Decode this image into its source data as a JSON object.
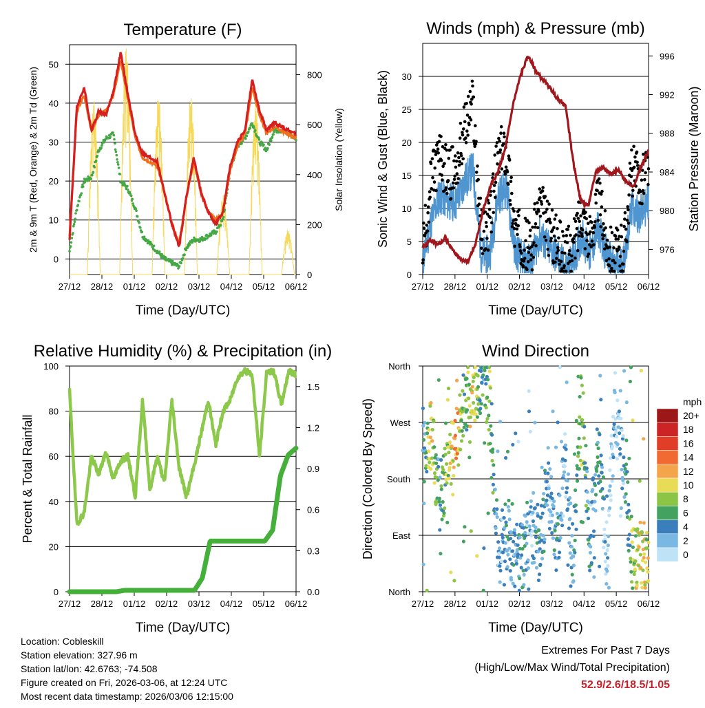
{
  "x_ticks": [
    "27/12",
    "28/12",
    "01/12",
    "02/12",
    "03/12",
    "04/12",
    "05/12",
    "06/12"
  ],
  "colors": {
    "red": "#d62020",
    "orange": "#f07020",
    "green": "#44a844",
    "yellow": "#f6d85a",
    "black": "#000000",
    "blue": "#4f95d0",
    "maroon": "#a0181e",
    "rh": "#8cc84a",
    "rain": "#44b03a",
    "extremes": "#c8202a"
  },
  "chart_data": [
    {
      "id": "temperature",
      "type": "line",
      "title": "Temperature (F)",
      "xlabel": "Time (Day/UTC)",
      "ylabel": "2m & 9m T (Red, Orange) & 2m Td (Green)",
      "y2label": "Solar Insolation (Yellow)",
      "ylim": [
        -4,
        55
      ],
      "yticks": [
        0,
        10,
        20,
        30,
        40,
        50
      ],
      "y2lim": [
        0,
        920
      ],
      "y2ticks": [
        0,
        200,
        400,
        600,
        800
      ],
      "series": [
        {
          "name": "2m T",
          "color": "red",
          "values": [
            5,
            39,
            44,
            33,
            38,
            37,
            43,
            53,
            42,
            32,
            27,
            26,
            25,
            17,
            9,
            3,
            16,
            26,
            17,
            12,
            9,
            12,
            24,
            30,
            33,
            46,
            38,
            33,
            35,
            34,
            33,
            32
          ]
        },
        {
          "name": "9m T",
          "color": "orange",
          "values": [
            6,
            38,
            42,
            33,
            37,
            38,
            42,
            51,
            41,
            31,
            26,
            25,
            24,
            17,
            9,
            4,
            16,
            25,
            17,
            12,
            10,
            12,
            23,
            29,
            32,
            44,
            37,
            32,
            34,
            33,
            32,
            31
          ]
        },
        {
          "name": "2m Td",
          "color": "green",
          "values": [
            2,
            13,
            20,
            21,
            28,
            31,
            32,
            20,
            18,
            13,
            6,
            4,
            2,
            0,
            -1,
            -2,
            3,
            5,
            5,
            6,
            7,
            10,
            23,
            29,
            31,
            35,
            30,
            28,
            33,
            33,
            32,
            31
          ]
        },
        {
          "name": "Solar Insolation",
          "color": "yellow",
          "axis": "y2",
          "daily_peaks": [
            700,
            920,
            720,
            720,
            320,
            690,
            180
          ]
        }
      ]
    },
    {
      "id": "winds",
      "type": "scatter",
      "title": "Winds (mph) & Pressure (mb)",
      "xlabel": "Time (Day/UTC)",
      "ylabel": "Sonic Wind & Gust (Blue, Black)",
      "y2label": "Station Pressure (Maroon)",
      "ylim": [
        0,
        35
      ],
      "yticks": [
        0,
        5,
        10,
        15,
        20,
        25,
        30
      ],
      "y2lim": [
        973.4,
        997.3
      ],
      "y2ticks": [
        976,
        980,
        984,
        988,
        992,
        996
      ],
      "series": [
        {
          "name": "Sonic Wind",
          "color": "blue",
          "values": [
            2,
            8,
            12,
            11,
            11,
            14,
            16,
            3,
            3,
            12,
            13,
            4,
            2,
            2,
            6,
            4,
            3,
            1,
            2,
            6,
            3,
            7,
            3,
            1,
            2,
            10,
            9,
            11
          ]
        },
        {
          "name": "Gust",
          "color": "black",
          "values": [
            4,
            14,
            18,
            15,
            16,
            22,
            26,
            6,
            8,
            18,
            19,
            7,
            5,
            4,
            11,
            7,
            5,
            3,
            4,
            10,
            5,
            12,
            5,
            3,
            4,
            16,
            14,
            17
          ]
        },
        {
          "name": "Station Pressure",
          "color": "maroon",
          "axis": "y2",
          "values": [
            976.2,
            977.0,
            976.4,
            977.2,
            975.9,
            975.0,
            974.8,
            976.5,
            980.0,
            982.5,
            984.0,
            986.5,
            991.0,
            994.0,
            996.0,
            994.5,
            993.5,
            992.6,
            991.5,
            990.8,
            985.0,
            981.0,
            980.5,
            984.0,
            984.5,
            983.8,
            984.2,
            983.0,
            982.5,
            984.5,
            986.2
          ]
        }
      ]
    },
    {
      "id": "humidity",
      "type": "line",
      "title": "Relative Humidity (%) & Precipitation (in)",
      "xlabel": "Time (Day/UTC)",
      "ylabel": "Percent & Total Rainfall",
      "ylim": [
        0,
        100
      ],
      "yticks": [
        0,
        20,
        40,
        60,
        80,
        100
      ],
      "y2lim": [
        0,
        1.65
      ],
      "y2ticks": [
        "0.0",
        "0.3",
        "0.6",
        "0.9",
        "1.2",
        "1.5"
      ],
      "series": [
        {
          "name": "Relative Humidity",
          "color": "rh",
          "values": [
            89,
            30,
            35,
            60,
            52,
            62,
            50,
            58,
            60,
            42,
            85,
            45,
            60,
            48,
            85,
            55,
            42,
            55,
            70,
            85,
            65,
            80,
            85,
            95,
            98,
            96,
            60,
            98,
            97,
            83,
            98,
            96
          ]
        },
        {
          "name": "Total Rainfall",
          "color": "rain",
          "axis": "y2",
          "values": [
            0,
            0,
            0,
            0,
            0,
            0,
            0,
            0.01,
            0.01,
            0.01,
            0.01,
            0.01,
            0.01,
            0.01,
            0.01,
            0.01,
            0.01,
            0.1,
            0.37,
            0.37,
            0.37,
            0.37,
            0.37,
            0.37,
            0.37,
            0.37,
            0.45,
            0.85,
            1.0,
            1.05
          ]
        }
      ]
    },
    {
      "id": "direction",
      "type": "scatter",
      "title": "Wind Direction",
      "xlabel": "Time (Day/UTC)",
      "ylabel": "Direction (Colored By Speed)",
      "ylim": [
        0,
        360
      ],
      "yticks": [
        "North",
        "East",
        "South",
        "West",
        "North"
      ],
      "legend_title": "mph",
      "legend_labels": [
        "20+",
        "18",
        "16",
        "14",
        "12",
        "10",
        "8",
        "6",
        "4",
        "2",
        "0"
      ],
      "legend_colors": [
        "#9c1818",
        "#cc2424",
        "#e03e26",
        "#f06a32",
        "#f4a44a",
        "#e8dc56",
        "#8cc446",
        "#44a260",
        "#3a7fbc",
        "#7ab8e4",
        "#bee2f6"
      ],
      "series": [
        {
          "name": "Direction",
          "values": [
            240,
            250,
            150,
            200,
            240,
            300,
            320,
            340,
            310,
            60,
            90,
            50,
            60,
            120,
            60,
            180,
            70,
            200,
            60,
            320,
            70,
            230,
            60,
            300,
            200,
            60,
            60,
            60
          ]
        },
        {
          "name": "Speed",
          "values": [
            2,
            11,
            4,
            8,
            12,
            6,
            10,
            4,
            8,
            2,
            4,
            3,
            4,
            2,
            5,
            2,
            3,
            2,
            4,
            8,
            3,
            5,
            2,
            1,
            2,
            8,
            10,
            9
          ]
        }
      ]
    }
  ],
  "station": {
    "location": "Location: Cobleskill",
    "elevation": "Station elevation: 327.96 m",
    "latlon": "Station lat/lon: 42.6763; -74.508",
    "created": "Figure created on Fri, 2026-03-06, at 12:24 UTC",
    "recent": "Most recent data timestamp: 2026/03/06 12:15:00"
  },
  "extremes": {
    "title": "Extremes For Past 7 Days",
    "subtitle": "(High/Low/Max Wind/Total Precipitation)",
    "values": "52.9/2.6/18.5/1.05"
  }
}
